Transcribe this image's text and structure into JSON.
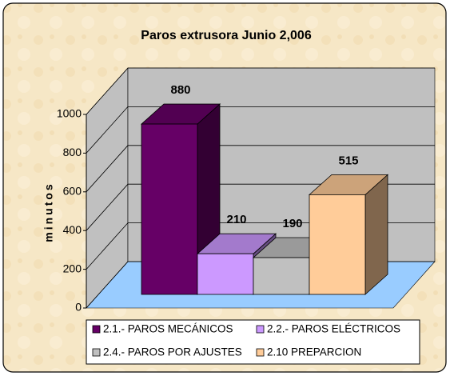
{
  "chart_data": {
    "type": "bar3d",
    "title": "Paros extrusora Junio 2,006",
    "y_label": "minutos",
    "series": [
      {
        "name": "2.1.- PAROS MECÁNICOS",
        "color": "#660066",
        "values": [
          880
        ]
      },
      {
        "name": "2.2.- PAROS ELÉCTRICOS",
        "color": "#cc99ff",
        "values": [
          210
        ]
      },
      {
        "name": "2.4.- PAROS POR AJUSTES",
        "color": "#c0c0c0",
        "values": [
          190
        ]
      },
      {
        "name": "2.10 PREPARCION",
        "color": "#ffcc99",
        "values": [
          515
        ]
      }
    ],
    "ylim": [
      0,
      1000
    ],
    "yticks": [
      0,
      200,
      400,
      600,
      800,
      1000
    ],
    "grid": true,
    "wall_color": "#c0c0c0",
    "floor_color": "#99ccff"
  }
}
